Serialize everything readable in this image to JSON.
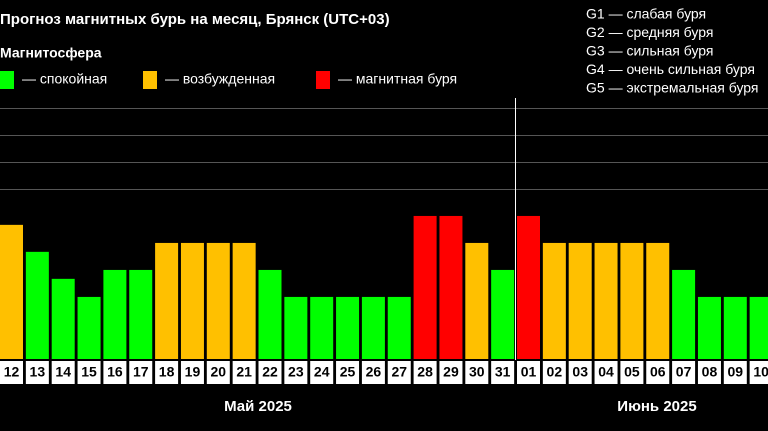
{
  "chart_data": {
    "type": "bar",
    "title": "Прогноз магнитных бурь на месяц, Брянск (UTC+03)",
    "legend_title": "Магнитосфера",
    "legend": [
      {
        "color": "#00ff00",
        "label": "— спокойная"
      },
      {
        "color": "#ffc000",
        "label": "— возбужденная"
      },
      {
        "color": "#ff0000",
        "label": "— магнитная буря"
      }
    ],
    "storm_levels": [
      "G1 — слабая буря",
      "G2 — средняя буря",
      "G3 — сильная буря",
      "G4 — очень сильная буря",
      "G5 — экстремальная буря"
    ],
    "categories": [
      "12",
      "13",
      "14",
      "15",
      "16",
      "17",
      "18",
      "19",
      "20",
      "21",
      "22",
      "23",
      "24",
      "25",
      "26",
      "27",
      "28",
      "29",
      "30",
      "31",
      "01",
      "02",
      "03",
      "04",
      "05",
      "06",
      "07",
      "08",
      "09",
      "10"
    ],
    "values": [
      4.67,
      3.67,
      2.67,
      2,
      3,
      3,
      4,
      4,
      4,
      4,
      3,
      2,
      2,
      2,
      2,
      2,
      5,
      5,
      4,
      3,
      5,
      4,
      4,
      4,
      4,
      4,
      3,
      2,
      2,
      2
    ],
    "colors": [
      "#ffc000",
      "#00ff00",
      "#00ff00",
      "#00ff00",
      "#00ff00",
      "#00ff00",
      "#ffc000",
      "#ffc000",
      "#ffc000",
      "#ffc000",
      "#00ff00",
      "#00ff00",
      "#00ff00",
      "#00ff00",
      "#00ff00",
      "#00ff00",
      "#ff0000",
      "#ff0000",
      "#ffc000",
      "#00ff00",
      "#ff0000",
      "#ffc000",
      "#ffc000",
      "#ffc000",
      "#ffc000",
      "#ffc000",
      "#00ff00",
      "#00ff00",
      "#00ff00",
      "#00ff00"
    ],
    "x_groups": [
      "Май 2025",
      "Июнь 2025"
    ],
    "ylim": [
      -0.3,
      9.37
    ],
    "gridlines": [
      6,
      7,
      8,
      9
    ]
  }
}
